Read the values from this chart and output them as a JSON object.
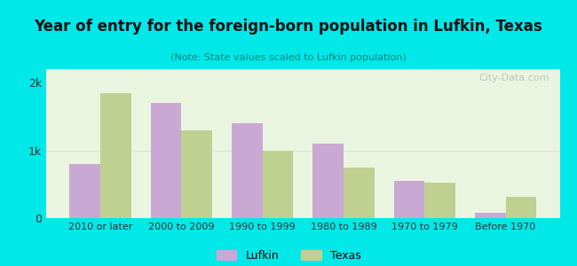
{
  "title": "Year of entry for the foreign-born population in Lufkin, Texas",
  "subtitle": "(Note: State values scaled to Lufkin population)",
  "categories": [
    "2010 or later",
    "2000 to 2009",
    "1990 to 1999",
    "1980 to 1989",
    "1970 to 1979",
    "Before 1970"
  ],
  "lufkin_values": [
    800,
    1700,
    1400,
    1100,
    550,
    80
  ],
  "texas_values": [
    1850,
    1300,
    1000,
    750,
    520,
    320
  ],
  "lufkin_color": "#c9a8d4",
  "texas_color": "#c0d090",
  "background_outer": "#00e8e8",
  "background_inner": "#eaf5e0",
  "title_color": "#111111",
  "subtitle_color": "#008080",
  "yticks": [
    0,
    1000,
    2000
  ],
  "ytick_labels": [
    "0",
    "1k",
    "2k"
  ],
  "ylim": [
    0,
    2200
  ],
  "grid_color": "#dddddd",
  "watermark": "City-Data.com",
  "legend_lufkin": "Lufkin",
  "legend_texas": "Texas"
}
